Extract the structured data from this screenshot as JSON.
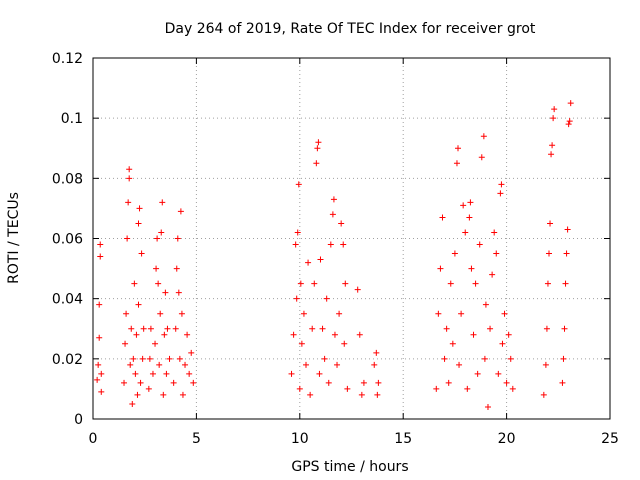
{
  "chart_data": {
    "type": "scatter",
    "title": "Day 264 of 2019, Rate Of TEC Index for receiver grot",
    "xlabel": "GPS time / hours",
    "ylabel": "ROTI / TECUs",
    "xlim": [
      0,
      25
    ],
    "ylim": [
      0,
      0.12
    ],
    "xticks": [
      0,
      5,
      10,
      15,
      20,
      25
    ],
    "xtick_labels": [
      "0",
      "5",
      "10",
      "15",
      "20",
      "25"
    ],
    "yticks": [
      0,
      0.02,
      0.04,
      0.06,
      0.08,
      0.1,
      0.12
    ],
    "ytick_labels": [
      "0",
      "0.02",
      "0.04",
      "0.06",
      "0.08",
      "0.1",
      "0.12"
    ],
    "grid": true,
    "legend": "none",
    "marker": "plus",
    "color": "#ff0000",
    "series": [
      {
        "points": [
          [
            0.2,
            0.013
          ],
          [
            0.25,
            0.018
          ],
          [
            0.3,
            0.027
          ],
          [
            0.3,
            0.038
          ],
          [
            0.35,
            0.054
          ],
          [
            0.35,
            0.058
          ],
          [
            0.4,
            0.009
          ],
          [
            0.4,
            0.015
          ],
          [
            1.5,
            0.012
          ],
          [
            1.55,
            0.025
          ],
          [
            1.6,
            0.035
          ],
          [
            1.65,
            0.06
          ],
          [
            1.7,
            0.072
          ],
          [
            1.75,
            0.08
          ],
          [
            1.75,
            0.083
          ],
          [
            1.8,
            0.018
          ],
          [
            1.85,
            0.03
          ],
          [
            1.9,
            0.005
          ],
          [
            1.95,
            0.02
          ],
          [
            2.0,
            0.045
          ],
          [
            2.05,
            0.015
          ],
          [
            2.1,
            0.028
          ],
          [
            2.15,
            0.008
          ],
          [
            2.2,
            0.038
          ],
          [
            2.2,
            0.065
          ],
          [
            2.25,
            0.07
          ],
          [
            2.3,
            0.012
          ],
          [
            2.35,
            0.055
          ],
          [
            2.4,
            0.02
          ],
          [
            2.45,
            0.03
          ],
          [
            2.7,
            0.01
          ],
          [
            2.75,
            0.02
          ],
          [
            2.8,
            0.03
          ],
          [
            2.9,
            0.015
          ],
          [
            3.0,
            0.025
          ],
          [
            3.05,
            0.05
          ],
          [
            3.1,
            0.06
          ],
          [
            3.15,
            0.045
          ],
          [
            3.2,
            0.018
          ],
          [
            3.25,
            0.035
          ],
          [
            3.3,
            0.062
          ],
          [
            3.35,
            0.072
          ],
          [
            3.4,
            0.008
          ],
          [
            3.45,
            0.028
          ],
          [
            3.5,
            0.042
          ],
          [
            3.55,
            0.015
          ],
          [
            3.6,
            0.03
          ],
          [
            3.7,
            0.02
          ],
          [
            3.9,
            0.012
          ],
          [
            4.0,
            0.03
          ],
          [
            4.05,
            0.05
          ],
          [
            4.1,
            0.06
          ],
          [
            4.15,
            0.042
          ],
          [
            4.2,
            0.02
          ],
          [
            4.25,
            0.069
          ],
          [
            4.3,
            0.035
          ],
          [
            4.35,
            0.008
          ],
          [
            4.45,
            0.018
          ],
          [
            4.55,
            0.028
          ],
          [
            4.65,
            0.015
          ],
          [
            4.75,
            0.022
          ],
          [
            4.85,
            0.012
          ],
          [
            9.6,
            0.015
          ],
          [
            9.7,
            0.028
          ],
          [
            9.8,
            0.058
          ],
          [
            9.85,
            0.04
          ],
          [
            9.9,
            0.062
          ],
          [
            9.95,
            0.078
          ],
          [
            10.0,
            0.01
          ],
          [
            10.05,
            0.045
          ],
          [
            10.1,
            0.025
          ],
          [
            10.2,
            0.035
          ],
          [
            10.3,
            0.018
          ],
          [
            10.4,
            0.052
          ],
          [
            10.5,
            0.008
          ],
          [
            10.6,
            0.03
          ],
          [
            10.7,
            0.045
          ],
          [
            10.8,
            0.085
          ],
          [
            10.85,
            0.09
          ],
          [
            10.9,
            0.092
          ],
          [
            10.95,
            0.015
          ],
          [
            11.0,
            0.053
          ],
          [
            11.1,
            0.03
          ],
          [
            11.2,
            0.02
          ],
          [
            11.3,
            0.04
          ],
          [
            11.4,
            0.012
          ],
          [
            11.5,
            0.058
          ],
          [
            11.6,
            0.068
          ],
          [
            11.65,
            0.073
          ],
          [
            11.7,
            0.028
          ],
          [
            11.8,
            0.018
          ],
          [
            11.9,
            0.035
          ],
          [
            12.0,
            0.065
          ],
          [
            12.1,
            0.058
          ],
          [
            12.15,
            0.025
          ],
          [
            12.2,
            0.045
          ],
          [
            12.3,
            0.01
          ],
          [
            12.8,
            0.043
          ],
          [
            12.9,
            0.028
          ],
          [
            13.0,
            0.008
          ],
          [
            13.1,
            0.012
          ],
          [
            13.6,
            0.018
          ],
          [
            13.7,
            0.022
          ],
          [
            13.75,
            0.008
          ],
          [
            13.8,
            0.012
          ],
          [
            16.6,
            0.01
          ],
          [
            16.7,
            0.035
          ],
          [
            16.8,
            0.05
          ],
          [
            16.9,
            0.067
          ],
          [
            17.0,
            0.02
          ],
          [
            17.1,
            0.03
          ],
          [
            17.2,
            0.012
          ],
          [
            17.3,
            0.045
          ],
          [
            17.4,
            0.025
          ],
          [
            17.5,
            0.055
          ],
          [
            17.6,
            0.085
          ],
          [
            17.65,
            0.09
          ],
          [
            17.7,
            0.018
          ],
          [
            17.8,
            0.035
          ],
          [
            17.9,
            0.071
          ],
          [
            18.0,
            0.062
          ],
          [
            18.1,
            0.01
          ],
          [
            18.2,
            0.067
          ],
          [
            18.25,
            0.072
          ],
          [
            18.3,
            0.05
          ],
          [
            18.4,
            0.028
          ],
          [
            18.5,
            0.045
          ],
          [
            18.6,
            0.015
          ],
          [
            18.7,
            0.058
          ],
          [
            18.8,
            0.087
          ],
          [
            18.9,
            0.094
          ],
          [
            18.95,
            0.02
          ],
          [
            19.0,
            0.038
          ],
          [
            19.1,
            0.004
          ],
          [
            19.2,
            0.03
          ],
          [
            19.3,
            0.048
          ],
          [
            19.4,
            0.062
          ],
          [
            19.5,
            0.055
          ],
          [
            19.6,
            0.015
          ],
          [
            19.7,
            0.075
          ],
          [
            19.75,
            0.078
          ],
          [
            19.8,
            0.025
          ],
          [
            19.9,
            0.035
          ],
          [
            20.0,
            0.012
          ],
          [
            20.1,
            0.028
          ],
          [
            20.2,
            0.02
          ],
          [
            20.3,
            0.01
          ],
          [
            21.8,
            0.008
          ],
          [
            21.9,
            0.018
          ],
          [
            21.95,
            0.03
          ],
          [
            22.0,
            0.045
          ],
          [
            22.05,
            0.055
          ],
          [
            22.1,
            0.065
          ],
          [
            22.15,
            0.088
          ],
          [
            22.2,
            0.091
          ],
          [
            22.25,
            0.1
          ],
          [
            22.3,
            0.103
          ],
          [
            22.7,
            0.012
          ],
          [
            22.75,
            0.02
          ],
          [
            22.8,
            0.03
          ],
          [
            22.85,
            0.045
          ],
          [
            22.9,
            0.055
          ],
          [
            22.95,
            0.063
          ],
          [
            23.0,
            0.098
          ],
          [
            23.05,
            0.099
          ],
          [
            23.1,
            0.105
          ]
        ]
      }
    ]
  }
}
